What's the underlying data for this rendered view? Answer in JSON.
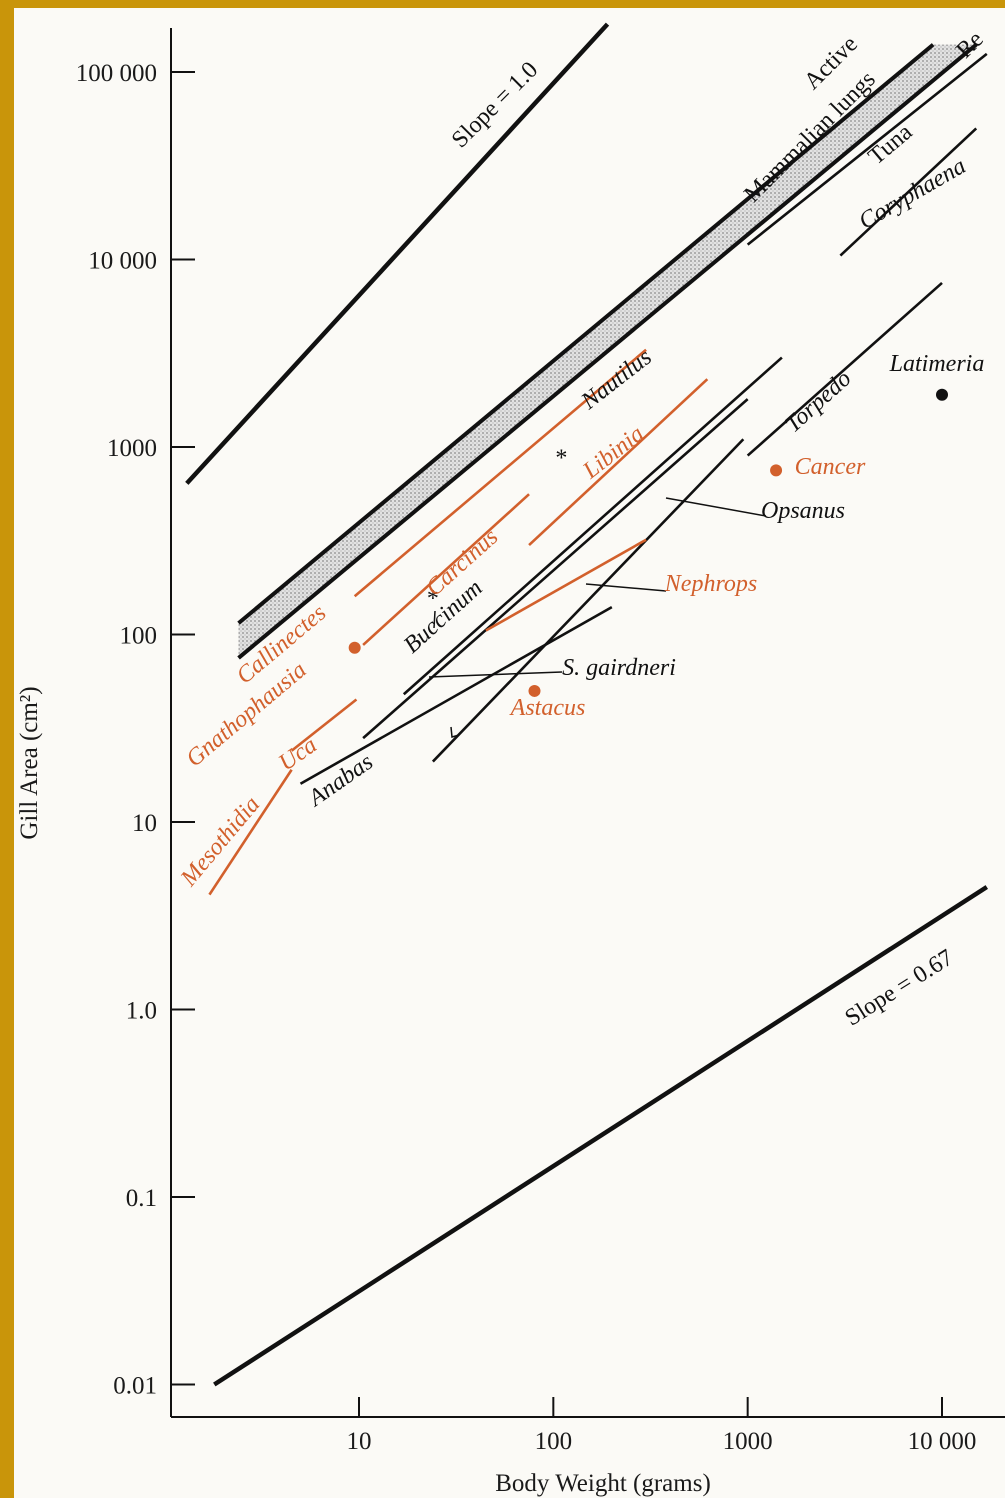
{
  "colors": {
    "black": "#111111",
    "orange": "#d2602c",
    "border": "#c9950a",
    "paper": "#fbfaf6",
    "shade": "#c8c8c8"
  },
  "chart_data": {
    "type": "line",
    "x_scale": "log",
    "y_scale": "log",
    "xlabel": "Body Weight (grams)",
    "ylabel": "Gill Area (cm²)",
    "xlim": [
      1.3,
      17000
    ],
    "ylim": [
      0.01,
      180000
    ],
    "x_ticks": [
      {
        "value": 10,
        "label": "10"
      },
      {
        "value": 100,
        "label": "100"
      },
      {
        "value": 1000,
        "label": "1000"
      },
      {
        "value": 10000,
        "label": "10 000"
      }
    ],
    "y_ticks": [
      {
        "value": 0.01,
        "label": "0.01"
      },
      {
        "value": 0.1,
        "label": "0.1"
      },
      {
        "value": 1,
        "label": "1.0"
      },
      {
        "value": 10,
        "label": "10"
      },
      {
        "value": 100,
        "label": "100"
      },
      {
        "value": 1000,
        "label": "1000"
      },
      {
        "value": 10000,
        "label": "10 000"
      },
      {
        "value": 100000,
        "label": "100 000"
      }
    ],
    "reference_lines": [
      {
        "name": "Slope = 1.0",
        "x": [
          1.3,
          190
        ],
        "y": [
          640,
          180000
        ]
      },
      {
        "name": "Slope = 0.67",
        "x": [
          1.8,
          17000
        ],
        "y": [
          0.01,
          4.5
        ]
      }
    ],
    "band": {
      "name": "Mammalian lungs",
      "label": "Mammalian lungs",
      "label_above": "Active",
      "upper": {
        "x": [
          2.4,
          9000
        ],
        "y": [
          115,
          140000
        ]
      },
      "lower": {
        "x": [
          2.4,
          15000
        ],
        "y": [
          75,
          140000
        ]
      }
    },
    "series": [
      {
        "name": "Slope = 1.0",
        "color": "black",
        "x": [
          1.3,
          190
        ],
        "y": [
          640,
          180000
        ],
        "width": 4.5
      },
      {
        "name": "Slope = 0.67",
        "color": "black",
        "x": [
          1.8,
          17000
        ],
        "y": [
          0.01,
          4.5
        ],
        "width": 4.5
      },
      {
        "name": "Tuna",
        "color": "black",
        "x": [
          1000,
          17000
        ],
        "y": [
          12000,
          125000
        ]
      },
      {
        "name": "Coryphaena",
        "color": "black",
        "x": [
          3000,
          15000
        ],
        "y": [
          10500,
          50000
        ]
      },
      {
        "name": "Torpedo",
        "color": "black",
        "x": [
          1000,
          10000
        ],
        "y": [
          900,
          7500
        ]
      },
      {
        "name": "Opsanus",
        "color": "black",
        "x": [
          24,
          950
        ],
        "y": [
          21,
          1100
        ]
      },
      {
        "name": "Buccinum",
        "color": "black",
        "x": [
          10.5,
          1000
        ],
        "y": [
          28,
          1800
        ]
      },
      {
        "name": "S. gairdneri",
        "color": "black",
        "x": [
          17,
          1500
        ],
        "y": [
          48,
          3000
        ]
      },
      {
        "name": "Anabas",
        "color": "black",
        "x": [
          5,
          200
        ],
        "y": [
          16,
          140
        ]
      },
      {
        "name": "Callinectes",
        "color": "orange",
        "x": [
          9.5,
          300
        ],
        "y": [
          160,
          3300
        ]
      },
      {
        "name": "Carcinus",
        "color": "orange",
        "x": [
          10.5,
          75
        ],
        "y": [
          88,
          560
        ]
      },
      {
        "name": "Libinia",
        "color": "orange",
        "x": [
          75,
          620
        ],
        "y": [
          300,
          2300
        ]
      },
      {
        "name": "Nephrops",
        "color": "orange",
        "x": [
          45,
          300
        ],
        "y": [
          105,
          320
        ]
      },
      {
        "name": "Uca",
        "color": "orange",
        "x": [
          4.5,
          9.7
        ],
        "y": [
          24,
          45
        ]
      },
      {
        "name": "Mesothidia",
        "color": "orange",
        "x": [
          1.7,
          4.5
        ],
        "y": [
          4.1,
          19
        ]
      }
    ],
    "points": [
      {
        "name": "Gnathophausia",
        "color": "orange",
        "x": 9.5,
        "y": 85
      },
      {
        "name": "Astacus",
        "color": "orange",
        "x": 80,
        "y": 50
      },
      {
        "name": "Cancer",
        "color": "orange",
        "x": 1400,
        "y": 750
      },
      {
        "name": "Latimeria",
        "color": "black",
        "x": 10000,
        "y": 1900
      },
      {
        "name": "Nautilus",
        "color": "black",
        "x": 110,
        "y": 900,
        "marker": "*"
      },
      {
        "name": "Buccinum",
        "color": "black",
        "x": 24,
        "y": 160,
        "marker": "*"
      }
    ],
    "labels": [
      {
        "text": "Slope = 1.0",
        "color": "black"
      },
      {
        "text": "Slope = 0.67",
        "color": "black"
      },
      {
        "text": "Active",
        "color": "black"
      },
      {
        "text": "Mammalian lungs",
        "color": "black"
      },
      {
        "text": "Re",
        "color": "black"
      },
      {
        "text": "Tuna",
        "color": "black"
      },
      {
        "text": "Coryphaena",
        "color": "black"
      },
      {
        "text": "Latimeria",
        "color": "black"
      },
      {
        "text": "Torpedo",
        "color": "black"
      },
      {
        "text": "Cancer",
        "color": "orange"
      },
      {
        "text": "Opsanus",
        "color": "black"
      },
      {
        "text": "Nautilus",
        "color": "black"
      },
      {
        "text": "Libinia",
        "color": "orange"
      },
      {
        "text": "Carcinus",
        "color": "orange"
      },
      {
        "text": "Buccinum",
        "color": "black"
      },
      {
        "text": "Nephrops",
        "color": "orange"
      },
      {
        "text": "Callinectes",
        "color": "orange"
      },
      {
        "text": "Gnathophausia",
        "color": "orange"
      },
      {
        "text": "S. gairdneri",
        "color": "black"
      },
      {
        "text": "Astacus",
        "color": "orange"
      },
      {
        "text": "Uca",
        "color": "orange"
      },
      {
        "text": "Anabas",
        "color": "black"
      },
      {
        "text": "Mesothidia",
        "color": "orange"
      }
    ]
  }
}
